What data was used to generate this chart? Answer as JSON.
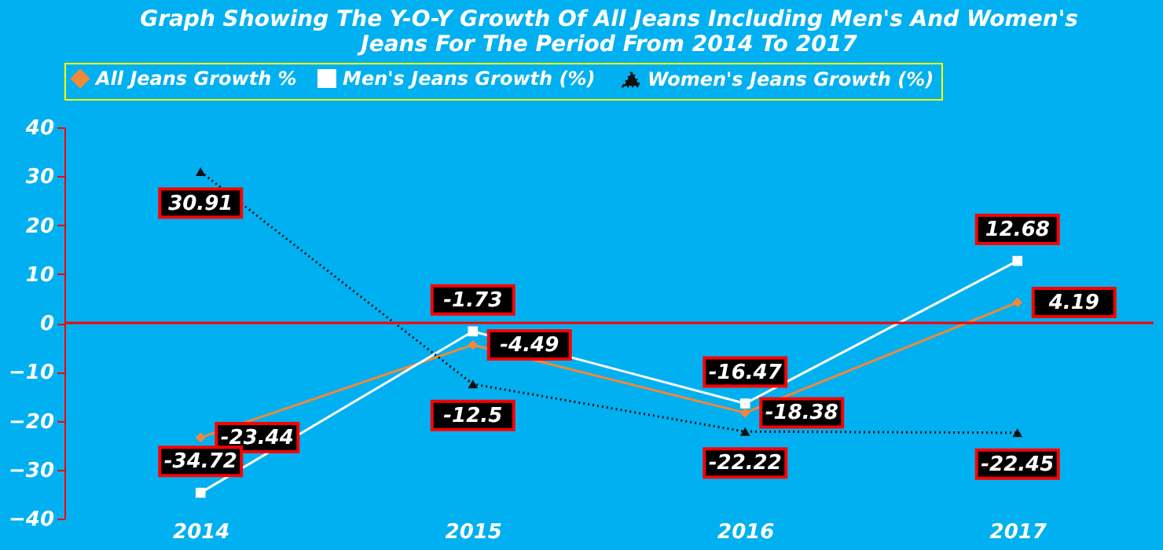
{
  "chart_data": {
    "type": "line",
    "title": "Graph Showing The Y-O-Y Growth Of All Jeans Including Men's And Women's Jeans For The Period From 2014 To 2017",
    "categories": [
      "2014",
      "2015",
      "2016",
      "2017"
    ],
    "series": [
      {
        "name": "All Jeans Growth %",
        "color": "#f0883a",
        "values": [
          -23.44,
          -4.49,
          -18.38,
          4.19
        ],
        "marker": "diamond",
        "line_style": "solid"
      },
      {
        "name": "Men's Jeans  Growth (%)",
        "color": "#ffffff",
        "values": [
          -34.72,
          -1.73,
          -16.47,
          12.68
        ],
        "marker": "square",
        "line_style": "solid"
      },
      {
        "name": "Women's Jeans Growth (%)",
        "color": "#101010",
        "values": [
          30.91,
          -12.5,
          -22.22,
          -22.45
        ],
        "marker": "triangle",
        "line_style": "dotted"
      }
    ],
    "ylim": [
      -40,
      40
    ],
    "yticks": [
      -40,
      -30,
      -20,
      -10,
      0,
      10,
      20,
      30,
      40
    ],
    "ref_lines": [
      {
        "axis": "y",
        "value": 0,
        "color": "#ff0000"
      }
    ],
    "data_labels": true,
    "grid": false,
    "legend": "top"
  }
}
